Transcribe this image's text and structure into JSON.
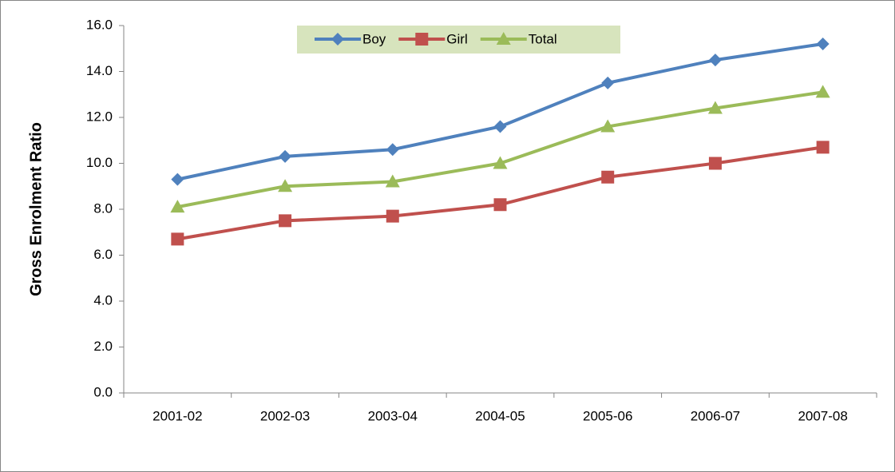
{
  "chart_data": {
    "type": "line",
    "y_label": "Gross Enrolment Ratio",
    "categories": [
      "2001-02",
      "2002-03",
      "2003-04",
      "2004-05",
      "2005-06",
      "2006-07",
      "2007-08"
    ],
    "series": [
      {
        "name": "Boy",
        "color": "#4f81bd",
        "marker": "diamond",
        "values": [
          9.3,
          10.3,
          10.6,
          11.6,
          13.5,
          14.5,
          15.2
        ]
      },
      {
        "name": "Girl",
        "color": "#c0504d",
        "marker": "square",
        "values": [
          6.7,
          7.5,
          7.7,
          8.2,
          9.4,
          10.0,
          10.7
        ]
      },
      {
        "name": "Total",
        "color": "#9bbb59",
        "marker": "triangle",
        "values": [
          8.1,
          9.0,
          9.2,
          10.0,
          11.6,
          12.4,
          13.1
        ]
      }
    ],
    "ylim": [
      0,
      16
    ],
    "yticks": [
      {
        "value": 0,
        "label": "0.0"
      },
      {
        "value": 2,
        "label": "2.0"
      },
      {
        "value": 4,
        "label": "4.0"
      },
      {
        "value": 6,
        "label": "6.0"
      },
      {
        "value": 8,
        "label": "8.0"
      },
      {
        "value": 10,
        "label": "10.0"
      },
      {
        "value": 12,
        "label": "12.0"
      },
      {
        "value": 14,
        "label": "14.0"
      },
      {
        "value": 16,
        "label": "16.0"
      }
    ],
    "grid": false,
    "legend": "top"
  }
}
